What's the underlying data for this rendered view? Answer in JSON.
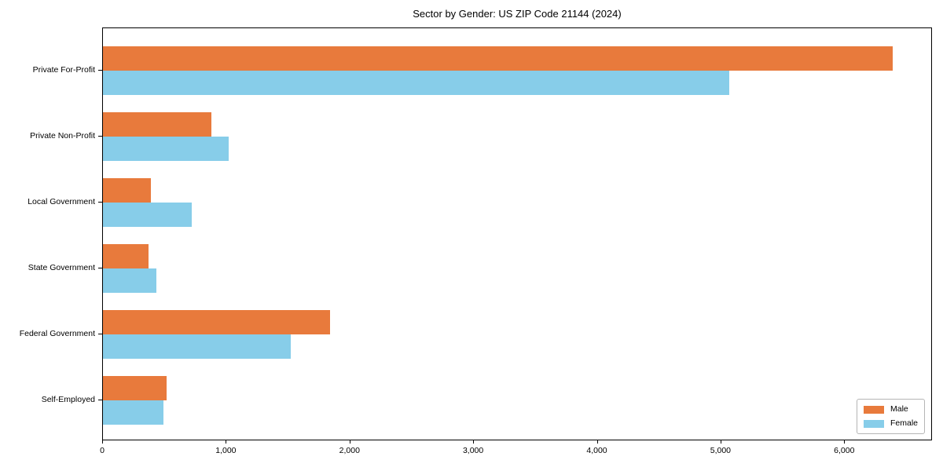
{
  "chart_data": {
    "type": "bar",
    "orientation": "horizontal",
    "title": "Sector by Gender: US ZIP Code 21144 (2024)",
    "categories": [
      "Private For-Profit",
      "Private Non-Profit",
      "Local Government",
      "State Government",
      "Federal Government",
      "Self-Employed"
    ],
    "series": [
      {
        "name": "Male",
        "color": "#E87A3C",
        "values": [
          6385,
          875,
          386,
          367,
          1837,
          513
        ]
      },
      {
        "name": "Female",
        "color": "#87CDE9",
        "values": [
          5065,
          1018,
          720,
          433,
          1521,
          488
        ]
      }
    ],
    "xlabel": "",
    "ylabel": "",
    "xlim": [
      0,
      6710
    ],
    "xticks": [
      0,
      1000,
      2000,
      3000,
      4000,
      5000,
      6000
    ],
    "xticklabels": [
      "0",
      "1,000",
      "2,000",
      "3,000",
      "4,000",
      "5,000",
      "6,000"
    ],
    "grid": false,
    "background": "#ffffff",
    "axis_color": "#000000",
    "legend": {
      "position": "lower right",
      "entries": [
        "Male",
        "Female"
      ]
    }
  }
}
